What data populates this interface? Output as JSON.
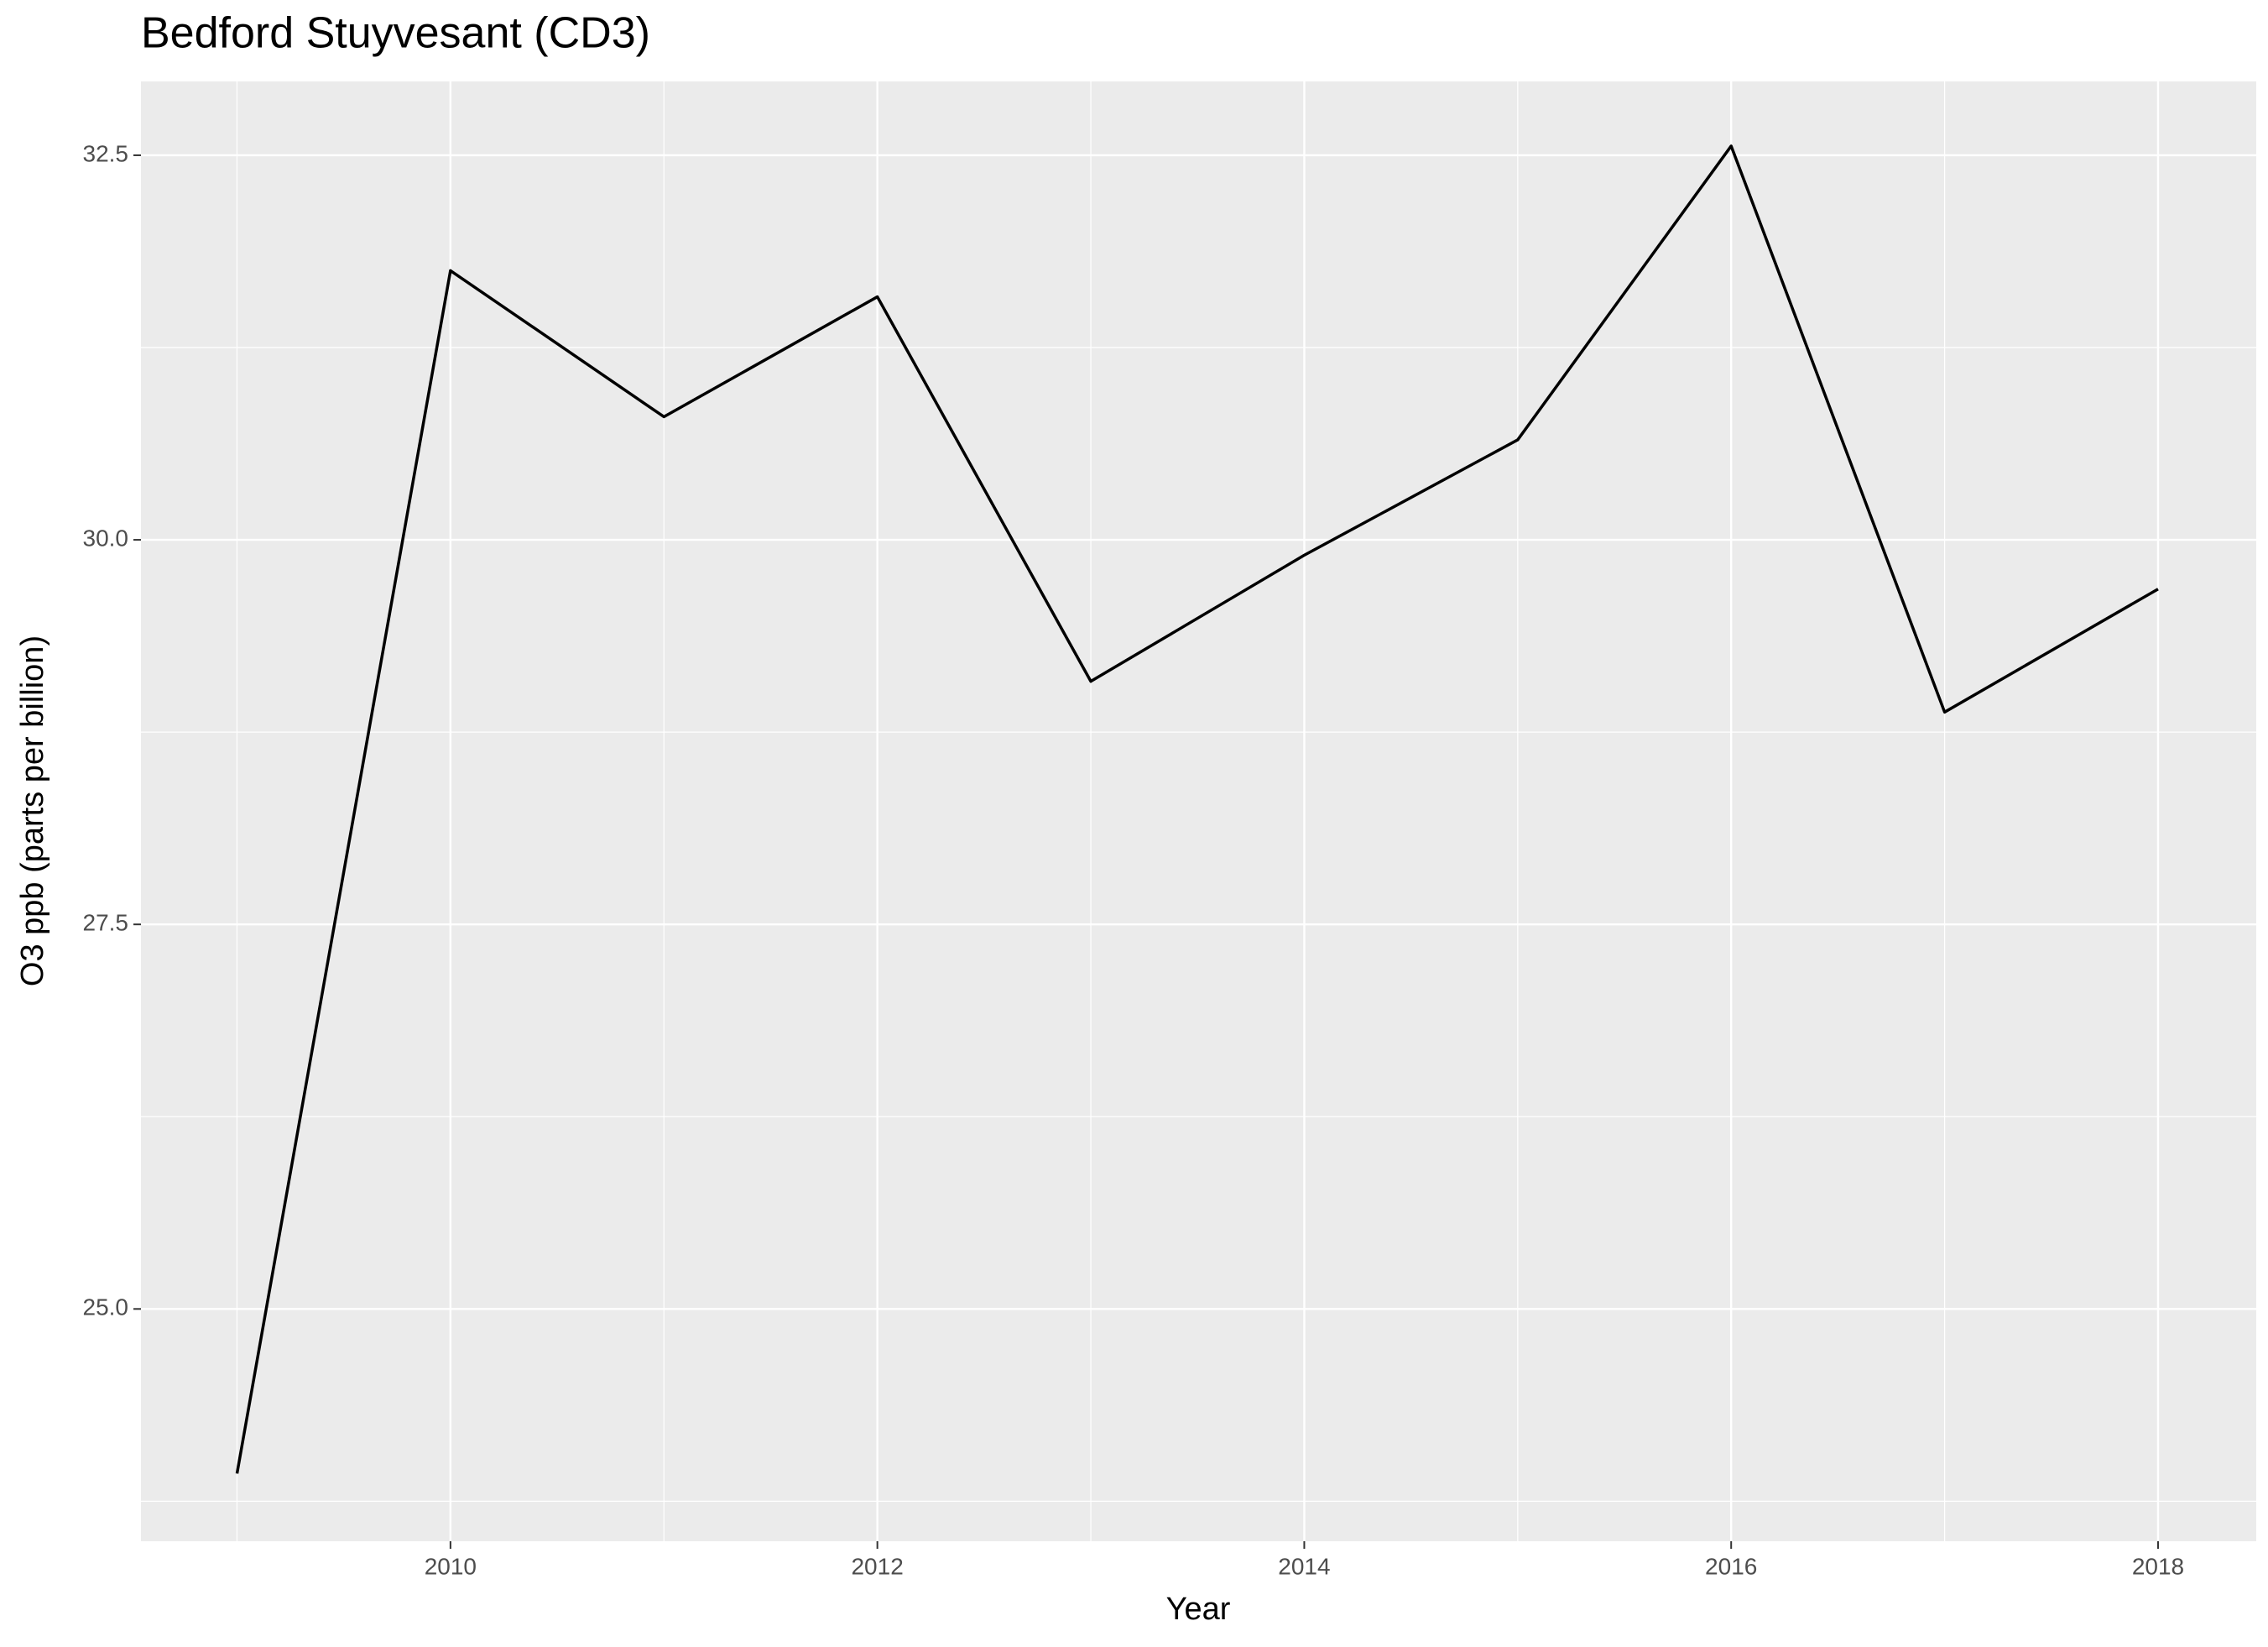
{
  "chart_data": {
    "type": "line",
    "title": "Bedford Stuyvesant (CD3)",
    "x_label": "Year",
    "y_label": "O3 ppb (parts per billion)",
    "x": [
      2009,
      2010,
      2011,
      2012,
      2013,
      2014,
      2015,
      2016,
      2017,
      2018
    ],
    "series": [
      {
        "name": "O3",
        "color": "#000000",
        "values": [
          23.93,
          31.75,
          30.8,
          31.58,
          29.08,
          29.9,
          30.65,
          32.56,
          28.88,
          29.68
        ]
      }
    ],
    "xlim": [
      2008.55,
      2018.46
    ],
    "xticks": [
      2010,
      2012,
      2014,
      2016,
      2018
    ],
    "ylim": [
      23.49,
      32.98
    ],
    "yticks": [
      {
        "value": 25,
        "label": "25.0"
      },
      {
        "value": 27.5,
        "label": "27.5"
      },
      {
        "value": 30,
        "label": "30.0"
      },
      {
        "value": 32.5,
        "label": "32.5"
      }
    ],
    "grid": true
  }
}
